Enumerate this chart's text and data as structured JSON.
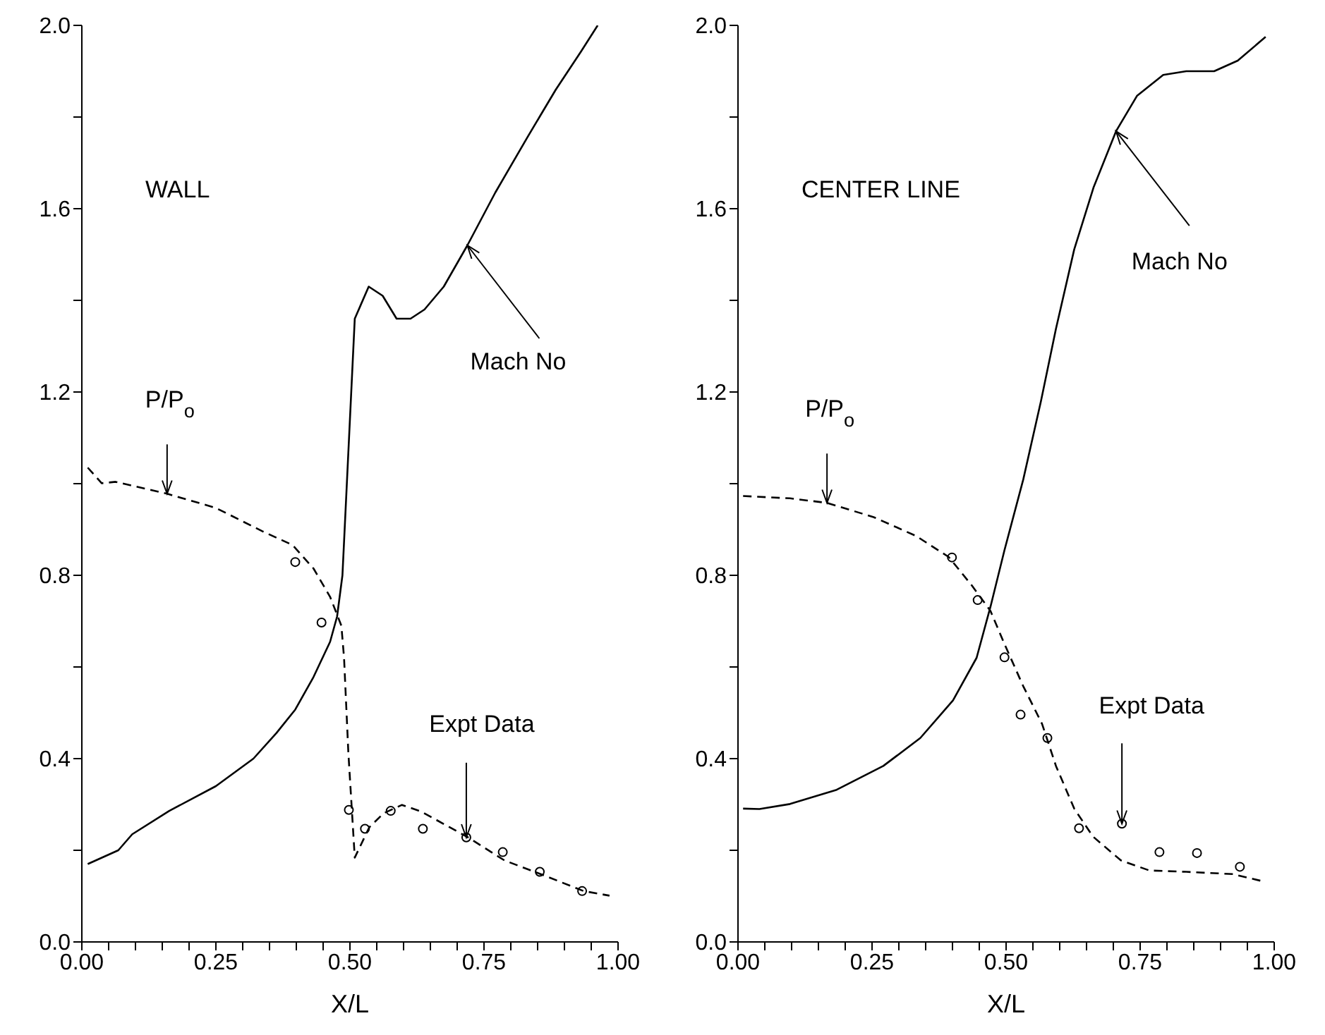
{
  "chart_data": [
    {
      "type": "line",
      "xlabel": "X/L",
      "xlim": [
        0,
        1
      ],
      "ylim": [
        0,
        2
      ],
      "xticks": [
        {
          "value": 0,
          "label": "0.00"
        },
        {
          "value": 0.05,
          "label": null
        },
        {
          "value": 0.1,
          "label": null
        },
        {
          "value": 0.15,
          "label": null
        },
        {
          "value": 0.2,
          "label": null
        },
        {
          "value": 0.25,
          "label": "0.25"
        },
        {
          "value": 0.3,
          "label": null
        },
        {
          "value": 0.35,
          "label": null
        },
        {
          "value": 0.4,
          "label": null
        },
        {
          "value": 0.45,
          "label": null
        },
        {
          "value": 0.5,
          "label": "0.50"
        },
        {
          "value": 0.55,
          "label": null
        },
        {
          "value": 0.6,
          "label": null
        },
        {
          "value": 0.65,
          "label": null
        },
        {
          "value": 0.7,
          "label": null
        },
        {
          "value": 0.75,
          "label": "0.75"
        },
        {
          "value": 0.8,
          "label": null
        },
        {
          "value": 0.85,
          "label": null
        },
        {
          "value": 0.9,
          "label": null
        },
        {
          "value": 0.95,
          "label": null
        },
        {
          "value": 1,
          "label": "1.00"
        }
      ],
      "yticks": [
        {
          "value": 0,
          "label": "0.0"
        },
        {
          "value": 0.2,
          "label": null
        },
        {
          "value": 0.4,
          "label": "0.4"
        },
        {
          "value": 0.6,
          "label": null
        },
        {
          "value": 0.8,
          "label": "0.8"
        },
        {
          "value": 1,
          "label": null
        },
        {
          "value": 1.2,
          "label": "1.2"
        },
        {
          "value": 1.4,
          "label": null
        },
        {
          "value": 1.6,
          "label": "1.6"
        },
        {
          "value": 1.8,
          "label": null
        },
        {
          "value": 2,
          "label": "2.0"
        }
      ],
      "annotations": [
        "WALL",
        {
          "text": "Mach No",
          "x": 0.719,
          "y": 1.52
        },
        {
          "text": "P/P$_{o}$",
          "x": 0.159,
          "y": 0.978
        },
        {
          "text": "Expt Data",
          "x": 0.717,
          "y": 0.228
        }
      ],
      "series": [
        {
          "type": "line",
          "color": "#000000",
          "line_style": "solid",
          "marker": "none",
          "x": [
            0.011,
            0.068,
            0.094,
            0.163,
            0.25,
            0.32,
            0.363,
            0.398,
            0.432,
            0.463,
            0.476,
            0.486,
            0.509,
            0.535,
            0.561,
            0.587,
            0.613,
            0.639,
            0.675,
            0.719,
            0.771,
            0.832,
            0.884,
            0.931,
            0.962
          ],
          "values": [
            0.17,
            0.2,
            0.235,
            0.286,
            0.34,
            0.4,
            0.456,
            0.507,
            0.578,
            0.655,
            0.71,
            0.8,
            1.36,
            1.43,
            1.41,
            1.36,
            1.36,
            1.38,
            1.43,
            1.52,
            1.635,
            1.758,
            1.86,
            1.943,
            2.0
          ]
        },
        {
          "type": "line",
          "color": "#000000",
          "line_style": "dashed",
          "marker": "none",
          "x": [
            0.011,
            0.037,
            0.063,
            0.159,
            0.25,
            0.337,
            0.393,
            0.432,
            0.463,
            0.484,
            0.489,
            0.497,
            0.509,
            0.536,
            0.563,
            0.597,
            0.632,
            0.719,
            0.788,
            0.858,
            0.936,
            0.984
          ],
          "values": [
            1.035,
            1.001,
            1.004,
            0.978,
            0.947,
            0.896,
            0.866,
            0.815,
            0.753,
            0.69,
            0.62,
            0.414,
            0.184,
            0.25,
            0.281,
            0.299,
            0.285,
            0.229,
            0.178,
            0.147,
            0.111,
            0.101
          ]
        },
        {
          "type": "scatter",
          "color": "#000000",
          "marker": "circle",
          "x": [
            0.398,
            0.447,
            0.498,
            0.528,
            0.576,
            0.636,
            0.717,
            0.785,
            0.854,
            0.933
          ],
          "values": [
            0.829,
            0.697,
            0.288,
            0.247,
            0.286,
            0.247,
            0.228,
            0.196,
            0.153,
            0.111
          ]
        }
      ]
    },
    {
      "type": "line",
      "xlabel": "X/L",
      "xlim": [
        0,
        1
      ],
      "ylim": [
        0,
        2
      ],
      "xticks": [
        {
          "value": 0,
          "label": "0.00"
        },
        {
          "value": 0.05,
          "label": null
        },
        {
          "value": 0.1,
          "label": null
        },
        {
          "value": 0.15,
          "label": null
        },
        {
          "value": 0.2,
          "label": null
        },
        {
          "value": 0.25,
          "label": "0.25"
        },
        {
          "value": 0.3,
          "label": null
        },
        {
          "value": 0.35,
          "label": null
        },
        {
          "value": 0.4,
          "label": null
        },
        {
          "value": 0.45,
          "label": null
        },
        {
          "value": 0.5,
          "label": "0.50"
        },
        {
          "value": 0.55,
          "label": null
        },
        {
          "value": 0.6,
          "label": null
        },
        {
          "value": 0.65,
          "label": null
        },
        {
          "value": 0.7,
          "label": null
        },
        {
          "value": 0.75,
          "label": "0.75"
        },
        {
          "value": 0.8,
          "label": null
        },
        {
          "value": 0.85,
          "label": null
        },
        {
          "value": 0.9,
          "label": null
        },
        {
          "value": 0.95,
          "label": null
        },
        {
          "value": 1,
          "label": "1.00"
        }
      ],
      "yticks": [
        {
          "value": 0,
          "label": "0.0"
        },
        {
          "value": 0.2,
          "label": null
        },
        {
          "value": 0.4,
          "label": "0.4"
        },
        {
          "value": 0.6,
          "label": null
        },
        {
          "value": 0.8,
          "label": "0.8"
        },
        {
          "value": 1,
          "label": null
        },
        {
          "value": 1.2,
          "label": "1.2"
        },
        {
          "value": 1.4,
          "label": null
        },
        {
          "value": 1.6,
          "label": "1.6"
        },
        {
          "value": 1.8,
          "label": null
        },
        {
          "value": 2,
          "label": "2.0"
        }
      ],
      "annotations": [
        "CENTER LINE",
        {
          "text": "Mach No",
          "x": 0.705,
          "y": 1.769
        },
        {
          "text": "P/P$_{o}$",
          "x": 0.166,
          "y": 0.958
        },
        {
          "text": "Expt Data",
          "x": 0.716,
          "y": 0.258
        }
      ],
      "series": [
        {
          "type": "line",
          "color": "#000000",
          "line_style": "solid",
          "marker": "none",
          "x": [
            0.0095,
            0.04,
            0.097,
            0.184,
            0.271,
            0.34,
            0.401,
            0.445,
            0.471,
            0.497,
            0.532,
            0.565,
            0.593,
            0.627,
            0.663,
            0.705,
            0.744,
            0.793,
            0.836,
            0.888,
            0.932,
            0.984
          ],
          "values": [
            0.291,
            0.29,
            0.301,
            0.332,
            0.384,
            0.445,
            0.527,
            0.62,
            0.732,
            0.855,
            1.009,
            1.18,
            1.338,
            1.511,
            1.646,
            1.769,
            1.846,
            1.892,
            1.9,
            1.9,
            1.923,
            1.975
          ]
        },
        {
          "type": "line",
          "color": "#000000",
          "line_style": "dashed",
          "marker": "none",
          "x": [
            0.0095,
            0.097,
            0.166,
            0.253,
            0.332,
            0.393,
            0.436,
            0.471,
            0.497,
            0.532,
            0.567,
            0.593,
            0.627,
            0.662,
            0.714,
            0.767,
            0.836,
            0.923,
            0.98
          ],
          "values": [
            0.973,
            0.968,
            0.958,
            0.927,
            0.886,
            0.84,
            0.778,
            0.722,
            0.65,
            0.558,
            0.476,
            0.384,
            0.291,
            0.23,
            0.178,
            0.156,
            0.153,
            0.148,
            0.132
          ]
        },
        {
          "type": "scatter",
          "color": "#000000",
          "marker": "circle",
          "x": [
            0.399,
            0.447,
            0.497,
            0.527,
            0.577,
            0.636,
            0.716,
            0.786,
            0.856,
            0.936
          ],
          "values": [
            0.839,
            0.746,
            0.621,
            0.496,
            0.445,
            0.248,
            0.258,
            0.196,
            0.194,
            0.164
          ]
        }
      ]
    }
  ]
}
